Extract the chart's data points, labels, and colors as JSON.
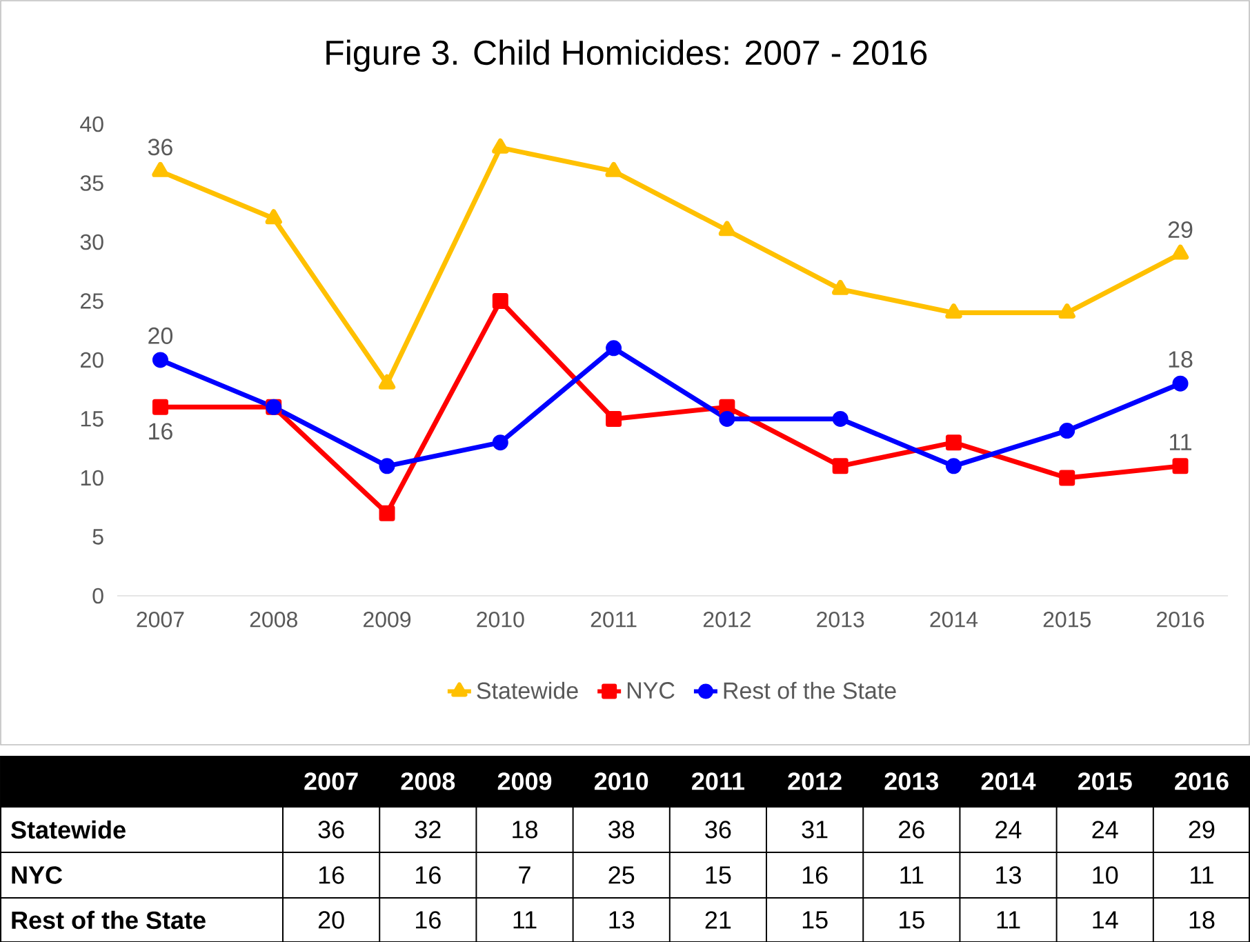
{
  "chart_data": [
    {
      "type": "line",
      "title": "Figure 3. Child Homicides: 2007 - 2016",
      "categories": [
        "2007",
        "2008",
        "2009",
        "2010",
        "2011",
        "2012",
        "2013",
        "2014",
        "2015",
        "2016"
      ],
      "series": [
        {
          "name": "Statewide",
          "color": "#ffc000",
          "marker": "triangle",
          "values": [
            36,
            32,
            18,
            38,
            36,
            31,
            26,
            24,
            24,
            29
          ],
          "value_labels": [
            "36",
            null,
            null,
            null,
            null,
            null,
            null,
            null,
            null,
            "29"
          ]
        },
        {
          "name": "NYC",
          "color": "#ff0000",
          "marker": "square",
          "values": [
            16,
            16,
            7,
            25,
            15,
            16,
            11,
            13,
            10,
            11
          ],
          "value_labels": [
            "16",
            null,
            null,
            null,
            null,
            null,
            null,
            null,
            null,
            "11"
          ]
        },
        {
          "name": "Rest of the State",
          "color": "#0000ff",
          "marker": "circle",
          "values": [
            20,
            16,
            11,
            13,
            21,
            15,
            15,
            11,
            14,
            18
          ],
          "value_labels": [
            "20",
            null,
            null,
            null,
            null,
            null,
            null,
            null,
            null,
            "18"
          ]
        }
      ],
      "ylim": [
        0,
        40
      ],
      "yticks": [
        0,
        5,
        10,
        15,
        20,
        25,
        30,
        35,
        40
      ],
      "grid": false,
      "legend": "bottom",
      "line_style": "solid"
    },
    {
      "type": "heatmap",
      "categories": [
        "2007",
        "2008",
        "2009",
        "2010",
        "2011",
        "2012",
        "2013",
        "2014",
        "2015",
        "2016"
      ],
      "y_categories": [
        "Statewide",
        "NYC",
        "Rest of the State"
      ],
      "cells": [
        [
          36,
          32,
          18,
          38,
          36,
          31,
          26,
          24,
          24,
          29
        ],
        [
          16,
          16,
          7,
          25,
          15,
          16,
          11,
          13,
          10,
          11
        ],
        [
          20,
          16,
          11,
          13,
          21,
          15,
          15,
          11,
          14,
          18
        ]
      ],
      "data_labels": true
    }
  ]
}
